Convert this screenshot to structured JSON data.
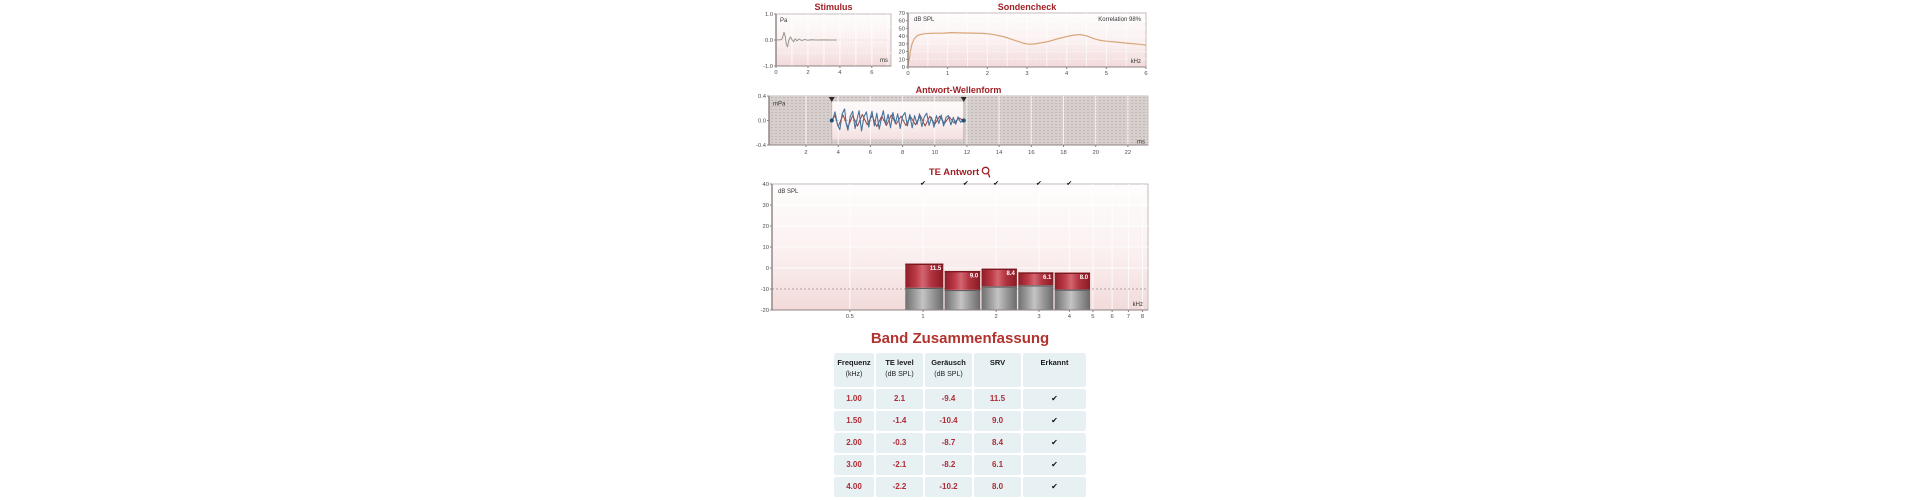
{
  "report": {
    "kind": "TEOAE Messung",
    "colors": {
      "title_red": "#a02126",
      "band_title_red": "#b2332e",
      "table_text_red": "#ad2c35",
      "bar_red": "#b22a36",
      "bar_gray": "#8f8f8f",
      "probe_curve_tan": "#d8a679",
      "stimulus_curve_gray": "#98948e",
      "waveform_blue": "#44749e",
      "waveform_red": "#a04040",
      "hatch_gray": "#d6cecc",
      "table_bg": "#e7f1f4"
    }
  },
  "chart_data": [
    {
      "id": "stimulus",
      "type": "line",
      "title": "Stimulus",
      "xlabel": "ms",
      "ylabel": "Pa",
      "xlim": [
        0,
        7.2
      ],
      "ylim": [
        -1,
        1
      ],
      "x_ticks": [
        0,
        2,
        4,
        6
      ],
      "y_ticks": [
        "1.0",
        "0.0",
        "-1.0"
      ],
      "grid": true,
      "series": [
        {
          "name": "stimulus-waveform",
          "color": "#98948e",
          "points": [
            [
              0,
              0
            ],
            [
              0.3,
              0.01
            ],
            [
              0.4,
              0.06
            ],
            [
              0.5,
              0.3
            ],
            [
              0.58,
              0.12
            ],
            [
              0.65,
              -0.18
            ],
            [
              0.72,
              -0.26
            ],
            [
              0.8,
              -0.02
            ],
            [
              0.9,
              0.12
            ],
            [
              1.0,
              0.02
            ],
            [
              1.1,
              -0.07
            ],
            [
              1.2,
              0.05
            ],
            [
              1.3,
              -0.03
            ],
            [
              1.45,
              0.04
            ],
            [
              1.6,
              -0.02
            ],
            [
              1.8,
              0.02
            ],
            [
              2.0,
              -0.01
            ],
            [
              2.2,
              0.01
            ],
            [
              2.5,
              0
            ],
            [
              3.0,
              0.005
            ],
            [
              3.4,
              0
            ],
            [
              3.8,
              0
            ]
          ]
        }
      ]
    },
    {
      "id": "sondencheck",
      "type": "line",
      "title": "Sondencheck",
      "annotation": "Korrelation 98%",
      "xlabel": "kHz",
      "ylabel": "dB SPL",
      "xlim": [
        0,
        6
      ],
      "ylim": [
        0,
        70
      ],
      "x_ticks": [
        0,
        1,
        2,
        3,
        4,
        5,
        6
      ],
      "y_ticks": [
        70,
        60,
        50,
        40,
        30,
        20,
        10,
        0
      ],
      "grid": true,
      "series": [
        {
          "name": "probe-spectrum",
          "color": "#d8a679",
          "points": [
            [
              0,
              2
            ],
            [
              0.03,
              10
            ],
            [
              0.06,
              20
            ],
            [
              0.1,
              30
            ],
            [
              0.15,
              36
            ],
            [
              0.22,
              40
            ],
            [
              0.3,
              42
            ],
            [
              0.4,
              43
            ],
            [
              0.55,
              43.5
            ],
            [
              0.7,
              43.8
            ],
            [
              0.9,
              44
            ],
            [
              1.1,
              44.6
            ],
            [
              1.3,
              44.2
            ],
            [
              1.6,
              44
            ],
            [
              1.9,
              43.6
            ],
            [
              2.1,
              42.5
            ],
            [
              2.4,
              39.5
            ],
            [
              2.7,
              34.5
            ],
            [
              2.9,
              31
            ],
            [
              3.05,
              29.5
            ],
            [
              3.2,
              30
            ],
            [
              3.5,
              32.5
            ],
            [
              3.8,
              37
            ],
            [
              4.0,
              39.5
            ],
            [
              4.2,
              41.5
            ],
            [
              4.35,
              42
            ],
            [
              4.5,
              40.5
            ],
            [
              4.7,
              36.5
            ],
            [
              4.85,
              34.5
            ],
            [
              5.0,
              33.5
            ],
            [
              5.2,
              32.5
            ],
            [
              5.5,
              31
            ],
            [
              5.8,
              29.5
            ],
            [
              6.0,
              28.5
            ]
          ]
        }
      ]
    },
    {
      "id": "antwort-wellenform",
      "type": "line",
      "title": "Antwort-Wellenform",
      "xlabel": "ms",
      "ylabel": "mPa",
      "xlim": [
        -0.3,
        23.25
      ],
      "ylim": [
        -0.4,
        0.4
      ],
      "x_ticks": [
        2,
        4,
        6,
        8,
        10,
        12,
        14,
        16,
        18,
        20,
        22
      ],
      "y_ticks": [
        "0.4",
        "0.0",
        "-0.4"
      ],
      "analysis_window_ms": [
        3.6,
        11.8
      ],
      "grid": true,
      "series": [
        {
          "name": "response-buffer-a",
          "color": "#a04040",
          "points": [
            [
              3.6,
              0
            ],
            [
              3.8,
              0.08
            ],
            [
              4.0,
              -0.1
            ],
            [
              4.3,
              0.09
            ],
            [
              4.6,
              -0.11
            ],
            [
              4.9,
              0.08
            ],
            [
              5.2,
              -0.09
            ],
            [
              5.5,
              0.1
            ],
            [
              5.8,
              -0.07
            ],
            [
              6.1,
              0.08
            ],
            [
              6.4,
              -0.1
            ],
            [
              6.7,
              0.07
            ],
            [
              7.0,
              -0.08
            ],
            [
              7.3,
              0.09
            ],
            [
              7.6,
              -0.06
            ],
            [
              7.9,
              0.07
            ],
            [
              8.2,
              -0.08
            ],
            [
              8.5,
              0.06
            ],
            [
              8.8,
              -0.07
            ],
            [
              9.1,
              0.08
            ],
            [
              9.4,
              -0.09
            ],
            [
              9.7,
              0.07
            ],
            [
              10.0,
              -0.06
            ],
            [
              10.3,
              0.07
            ],
            [
              10.6,
              -0.05
            ],
            [
              10.9,
              0.06
            ],
            [
              11.2,
              -0.04
            ],
            [
              11.5,
              0.04
            ],
            [
              11.8,
              0
            ]
          ]
        },
        {
          "name": "response-buffer-b",
          "color": "#44749e",
          "points": [
            [
              3.6,
              0
            ],
            [
              3.7,
              0.05
            ],
            [
              3.8,
              0.14
            ],
            [
              3.95,
              -0.06
            ],
            [
              4.1,
              -0.15
            ],
            [
              4.25,
              0.11
            ],
            [
              4.4,
              0.19
            ],
            [
              4.5,
              -0.05
            ],
            [
              4.6,
              -0.16
            ],
            [
              4.75,
              0.07
            ],
            [
              4.9,
              0.15
            ],
            [
              5.05,
              -0.13
            ],
            [
              5.2,
              0.05
            ],
            [
              5.3,
              0.16
            ],
            [
              5.45,
              -0.17
            ],
            [
              5.6,
              0.06
            ],
            [
              5.75,
              0.14
            ],
            [
              5.9,
              -0.11
            ],
            [
              6.0,
              0.05
            ],
            [
              6.1,
              0.15
            ],
            [
              6.25,
              -0.09
            ],
            [
              6.4,
              0.12
            ],
            [
              6.55,
              -0.14
            ],
            [
              6.7,
              0.05
            ],
            [
              6.8,
              0.16
            ],
            [
              6.95,
              -0.07
            ],
            [
              7.1,
              0.1
            ],
            [
              7.25,
              -0.12
            ],
            [
              7.4,
              0.13
            ],
            [
              7.55,
              -0.05
            ],
            [
              7.7,
              0.11
            ],
            [
              7.85,
              -0.13
            ],
            [
              8.0,
              0.07
            ],
            [
              8.15,
              0.13
            ],
            [
              8.3,
              -0.09
            ],
            [
              8.45,
              0.1
            ],
            [
              8.6,
              -0.12
            ],
            [
              8.75,
              0.08
            ],
            [
              8.9,
              -0.06
            ],
            [
              9.05,
              0.11
            ],
            [
              9.2,
              -0.1
            ],
            [
              9.35,
              0.06
            ],
            [
              9.5,
              0.12
            ],
            [
              9.65,
              -0.08
            ],
            [
              9.8,
              0.05
            ],
            [
              9.95,
              -0.11
            ],
            [
              10.1,
              0.08
            ],
            [
              10.25,
              -0.05
            ],
            [
              10.4,
              0.09
            ],
            [
              10.55,
              -0.09
            ],
            [
              10.7,
              0.05
            ],
            [
              10.85,
              0.08
            ],
            [
              11.0,
              -0.07
            ],
            [
              11.15,
              0.05
            ],
            [
              11.3,
              -0.06
            ],
            [
              11.45,
              0.06
            ],
            [
              11.6,
              -0.03
            ],
            [
              11.8,
              0.01
            ]
          ]
        }
      ]
    },
    {
      "id": "te-antwort",
      "type": "bar",
      "title": "TE Antwort",
      "title_symbol": "ear",
      "xlabel": "kHz",
      "ylabel": "dB SPL",
      "x_scale": "log2",
      "xlim": [
        0.24,
        8.4
      ],
      "ylim": [
        -20,
        40
      ],
      "x_ticks": [
        0.5,
        1,
        2,
        3,
        4,
        5,
        6,
        7,
        8
      ],
      "y_ticks": [
        40,
        30,
        20,
        10,
        0,
        -10,
        -20
      ],
      "noise_floor_dashed_at": -10,
      "band_edges_khz": [
        0.84,
        1.22,
        1.73,
        2.45,
        3.46,
        4.9
      ],
      "detected_mark": "✔",
      "bands": [
        {
          "freq_khz": 1.0,
          "te_db": 2.1,
          "noise_db": -9.4,
          "srv_db": "11.5",
          "detected": true
        },
        {
          "freq_khz": 1.5,
          "te_db": -1.4,
          "noise_db": -10.4,
          "srv_db": "9.0",
          "detected": true
        },
        {
          "freq_khz": 2.0,
          "te_db": -0.3,
          "noise_db": -8.7,
          "srv_db": "8.4",
          "detected": true
        },
        {
          "freq_khz": 3.0,
          "te_db": -2.1,
          "noise_db": -8.2,
          "srv_db": "6.1",
          "detected": true
        },
        {
          "freq_khz": 4.0,
          "te_db": -2.2,
          "noise_db": -10.2,
          "srv_db": "8.0",
          "detected": true
        }
      ]
    }
  ],
  "table": {
    "title": "Band Zusammenfassung",
    "columns": [
      {
        "label": "Frequenz",
        "unit": "(kHz)"
      },
      {
        "label": "TE level",
        "unit": "(dB SPL)"
      },
      {
        "label": "Geräusch",
        "unit": "(dB SPL)"
      },
      {
        "label": "SRV",
        "unit": ""
      },
      {
        "label": "Erkannt",
        "unit": ""
      }
    ],
    "rows": [
      [
        "1.00",
        "2.1",
        "-9.4",
        "11.5",
        "✔"
      ],
      [
        "1.50",
        "-1.4",
        "-10.4",
        "9.0",
        "✔"
      ],
      [
        "2.00",
        "-0.3",
        "-8.7",
        "8.4",
        "✔"
      ],
      [
        "3.00",
        "-2.1",
        "-8.2",
        "6.1",
        "✔"
      ],
      [
        "4.00",
        "-2.2",
        "-10.2",
        "8.0",
        "✔"
      ]
    ]
  }
}
